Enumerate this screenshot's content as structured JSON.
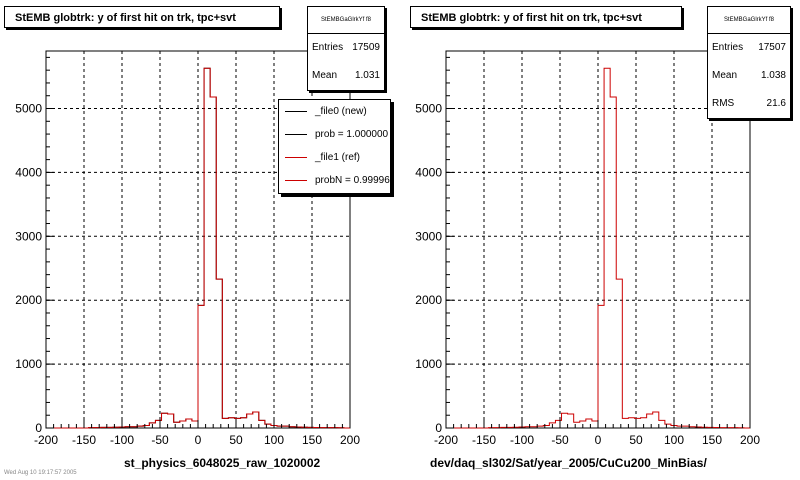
{
  "charts_meta": {
    "left": {
      "title": "StEMB globtrk: y of first hit on trk, tpc+svt",
      "stats": {
        "name": "StEMBGaGlrkYf f8",
        "entries_label": "Entries",
        "entries": "17509",
        "mean_label": "Mean",
        "mean": "1.031"
      },
      "legend": [
        "_file0 (new)",
        "prob = 1.000000",
        "_file1 (ref)",
        "probN = 0.99996"
      ],
      "xlabel": "st_physics_6048025_raw_1020002"
    },
    "right": {
      "title": "StEMB globtrk: y of first hit on trk, tpc+svt",
      "stats": {
        "name": "StEMBGaGlrkYf f8",
        "entries_label": "Entries",
        "entries": "17507",
        "mean_label": "Mean",
        "mean": "1.038",
        "rms_label": "RMS",
        "rms": "21.6"
      },
      "xlabel": "dev/daq_sl302/Sat/year_2005/CuCu200_MinBias/"
    },
    "corner_text": "Wed Aug 10 19:17:57 2005"
  },
  "chart_data": [
    {
      "type": "histogram",
      "title": "StEMB globtrk: y of first hit on trk, tpc+svt",
      "xlabel": "st_physics_6048025_raw_1020002",
      "xlim": [
        -200,
        200
      ],
      "ylim": [
        0,
        5900
      ],
      "xticks": [
        -200,
        -150,
        -100,
        -50,
        0,
        50,
        100,
        150,
        200
      ],
      "yticks": [
        0,
        1000,
        2000,
        3000,
        4000,
        5000
      ],
      "grid": true,
      "bin_width": 8,
      "bin_start": -200,
      "series": [
        {
          "name": "_file0 (new)",
          "color": "#000000",
          "values": [
            0,
            0,
            0,
            0,
            0,
            0,
            0,
            5,
            5,
            10,
            10,
            12,
            15,
            20,
            20,
            30,
            40,
            80,
            120,
            230,
            220,
            90,
            110,
            140,
            110,
            1920,
            5630,
            5180,
            2330,
            150,
            160,
            150,
            160,
            220,
            250,
            120,
            60,
            40,
            30,
            30,
            20,
            15,
            12,
            10,
            8,
            6,
            5,
            5,
            4,
            0
          ]
        },
        {
          "name": "_file1 (ref)",
          "color": "#cc0000",
          "values": [
            0,
            0,
            0,
            0,
            0,
            0,
            0,
            5,
            5,
            10,
            10,
            12,
            15,
            20,
            20,
            30,
            40,
            80,
            120,
            230,
            220,
            90,
            110,
            140,
            110,
            1920,
            5630,
            5180,
            2330,
            150,
            160,
            150,
            160,
            220,
            250,
            120,
            60,
            40,
            30,
            30,
            20,
            15,
            12,
            10,
            8,
            6,
            5,
            5,
            4,
            0
          ]
        }
      ]
    },
    {
      "type": "histogram",
      "title": "StEMB globtrk: y of first hit on trk, tpc+svt",
      "xlabel": "dev/daq_sl302/Sat/year_2005/CuCu200_MinBias/",
      "xlim": [
        -200,
        200
      ],
      "ylim": [
        0,
        5900
      ],
      "xticks": [
        -200,
        -150,
        -100,
        -50,
        0,
        50,
        100,
        150,
        200
      ],
      "yticks": [
        0,
        1000,
        2000,
        3000,
        4000,
        5000
      ],
      "grid": true,
      "bin_width": 8,
      "bin_start": -200,
      "series": [
        {
          "color": "#cc0000",
          "values": [
            0,
            0,
            0,
            0,
            0,
            0,
            0,
            5,
            5,
            10,
            10,
            12,
            15,
            20,
            20,
            30,
            40,
            80,
            120,
            230,
            220,
            90,
            110,
            140,
            110,
            1920,
            5630,
            5180,
            2330,
            150,
            160,
            150,
            160,
            220,
            250,
            120,
            60,
            40,
            30,
            30,
            20,
            15,
            12,
            10,
            8,
            6,
            5,
            5,
            4,
            0
          ]
        }
      ]
    }
  ]
}
